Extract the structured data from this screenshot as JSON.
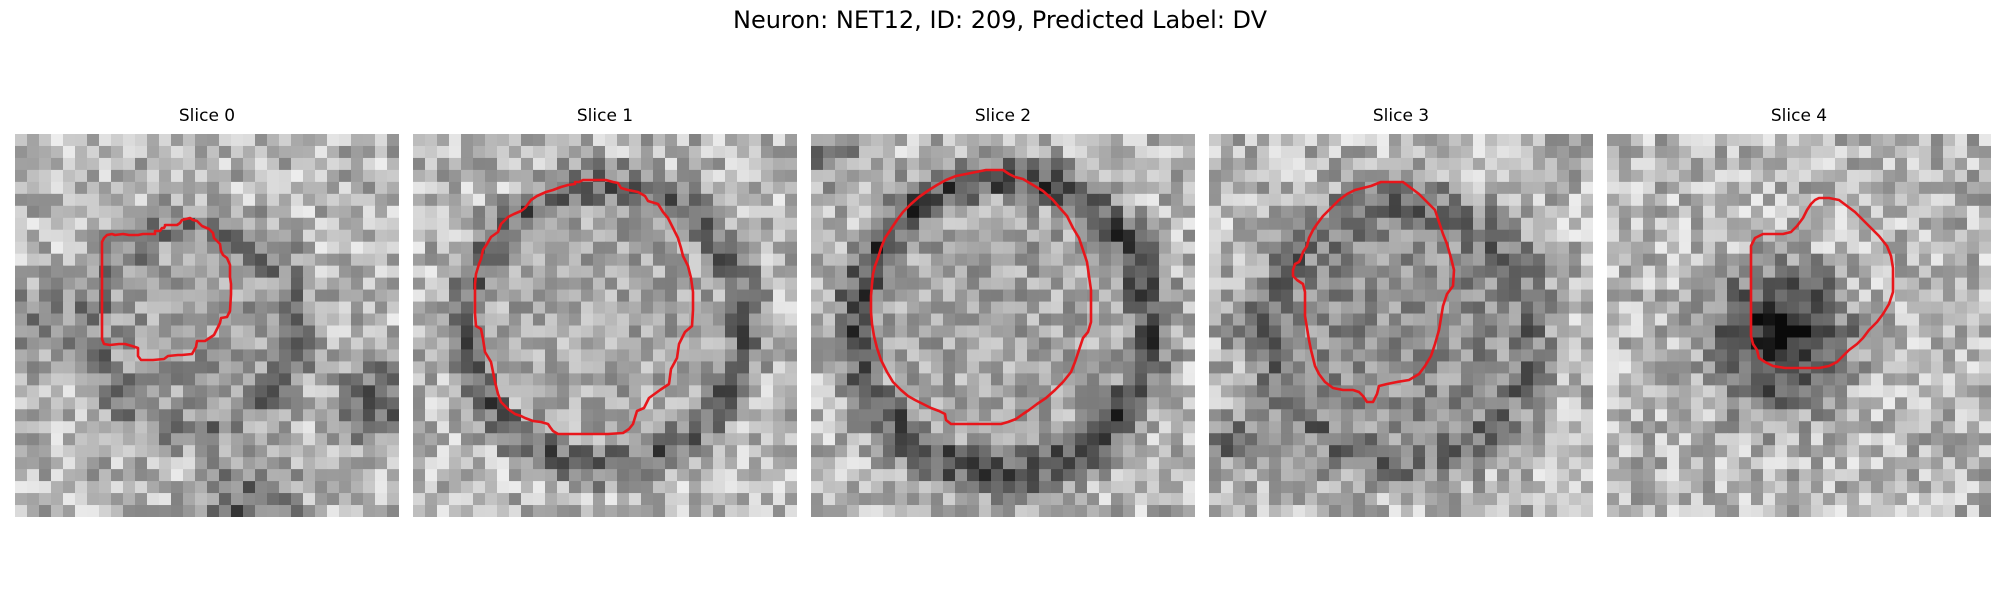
{
  "figure": {
    "title": "Neuron: NET12, ID: 209, Predicted Label: DV"
  },
  "contour_color": "#e8161b",
  "panels": [
    {
      "title": "Slice 0"
    },
    {
      "title": "Slice 1"
    },
    {
      "title": "Slice 2"
    },
    {
      "title": "Slice 3"
    },
    {
      "title": "Slice 4"
    }
  ]
}
